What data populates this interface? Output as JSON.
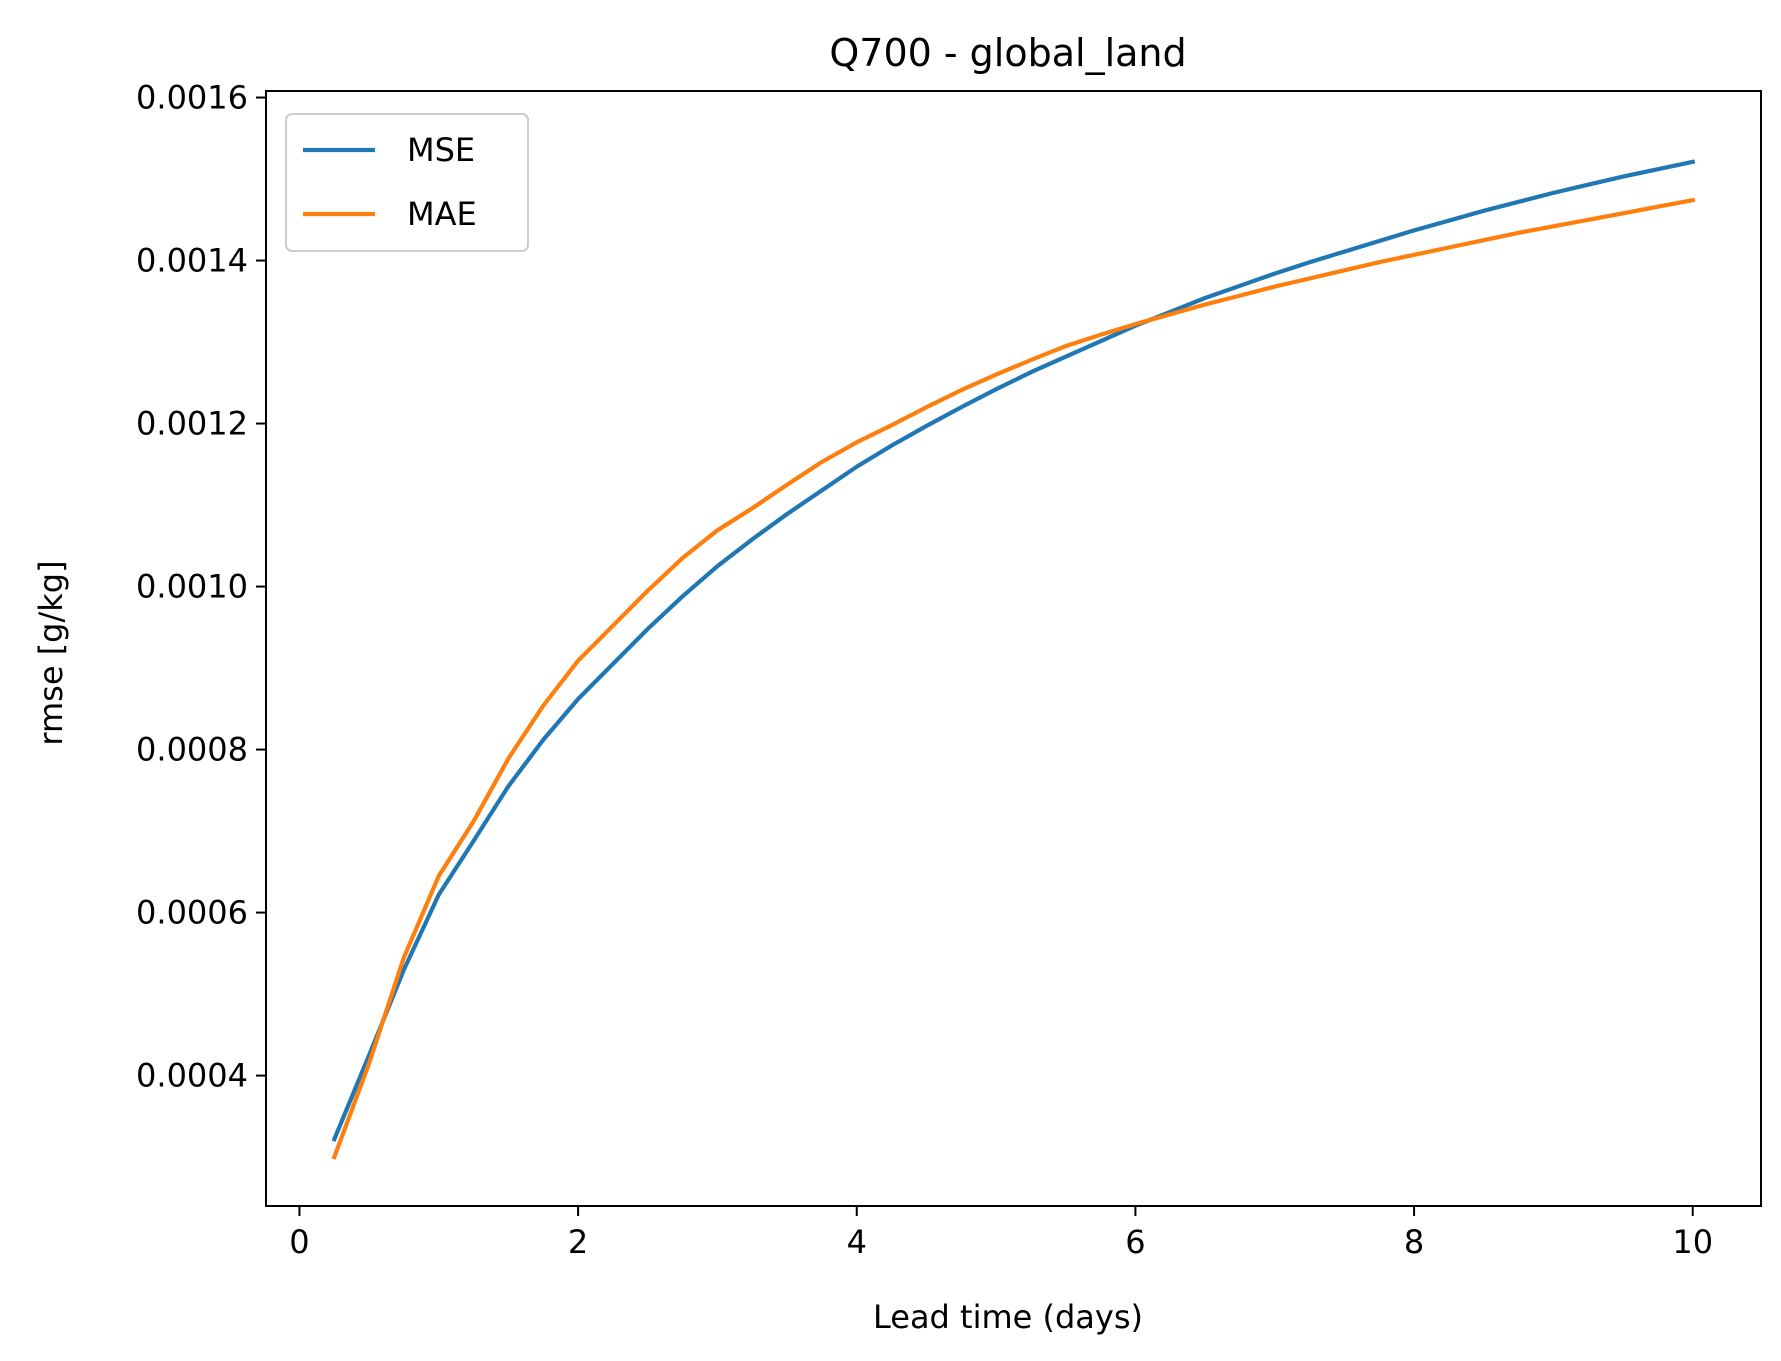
{
  "chart_data": {
    "type": "line",
    "title": "Q700 - global_land",
    "xlabel": "Lead time (days)",
    "ylabel": "rmse [g/kg]",
    "xlim": [
      -0.24,
      10.49
    ],
    "ylim": [
      0.00024,
      0.001608
    ],
    "xticks": [
      0,
      2,
      4,
      6,
      8,
      10
    ],
    "xtick_labels": [
      "0",
      "2",
      "4",
      "6",
      "8",
      "10"
    ],
    "yticks": [
      0.0004,
      0.0006,
      0.0008,
      0.001,
      0.0012,
      0.0014,
      0.0016
    ],
    "ytick_labels": [
      "0.0004",
      "0.0006",
      "0.0008",
      "0.0010",
      "0.0012",
      "0.0014",
      "0.0016"
    ],
    "grid": false,
    "legend_position": "upper-left",
    "x": [
      0.25,
      0.5,
      0.75,
      1.0,
      1.25,
      1.5,
      1.75,
      2.0,
      2.25,
      2.5,
      2.75,
      3.0,
      3.25,
      3.5,
      3.75,
      4.0,
      4.25,
      4.5,
      4.75,
      5.0,
      5.25,
      5.5,
      5.75,
      6.0,
      6.25,
      6.5,
      6.75,
      7.0,
      7.25,
      7.5,
      7.75,
      8.0,
      8.25,
      8.5,
      8.75,
      9.0,
      9.25,
      9.5,
      9.75,
      10.0
    ],
    "series": [
      {
        "name": "MSE",
        "color": "#1f77b4",
        "values": [
          0.000322,
          0.000425,
          0.00053,
          0.000622,
          0.000688,
          0.000755,
          0.000812,
          0.000862,
          0.000905,
          0.000948,
          0.000988,
          0.001025,
          0.001058,
          0.001089,
          0.001118,
          0.001147,
          0.001173,
          0.001197,
          0.00122,
          0.001242,
          0.001263,
          0.001282,
          0.001301,
          0.00132,
          0.001337,
          0.001354,
          0.001369,
          0.001384,
          0.001398,
          0.001411,
          0.001424,
          0.001437,
          0.001449,
          0.001461,
          0.001472,
          0.001483,
          0.001493,
          0.001503,
          0.001512,
          0.001521
        ]
      },
      {
        "name": "MAE",
        "color": "#ff7f0e",
        "values": [
          0.0003,
          0.000415,
          0.000545,
          0.000645,
          0.000712,
          0.000789,
          0.000854,
          0.000909,
          0.000952,
          0.000995,
          0.001035,
          0.001069,
          0.001096,
          0.001125,
          0.001153,
          0.001177,
          0.001198,
          0.00122,
          0.001241,
          0.00126,
          0.001278,
          0.001295,
          0.001309,
          0.001322,
          0.001334,
          0.001346,
          0.001357,
          0.001368,
          0.001378,
          0.001388,
          0.001398,
          0.001407,
          0.001416,
          0.001425,
          0.001434,
          0.001442,
          0.00145,
          0.001458,
          0.001466,
          0.001474
        ]
      }
    ]
  }
}
